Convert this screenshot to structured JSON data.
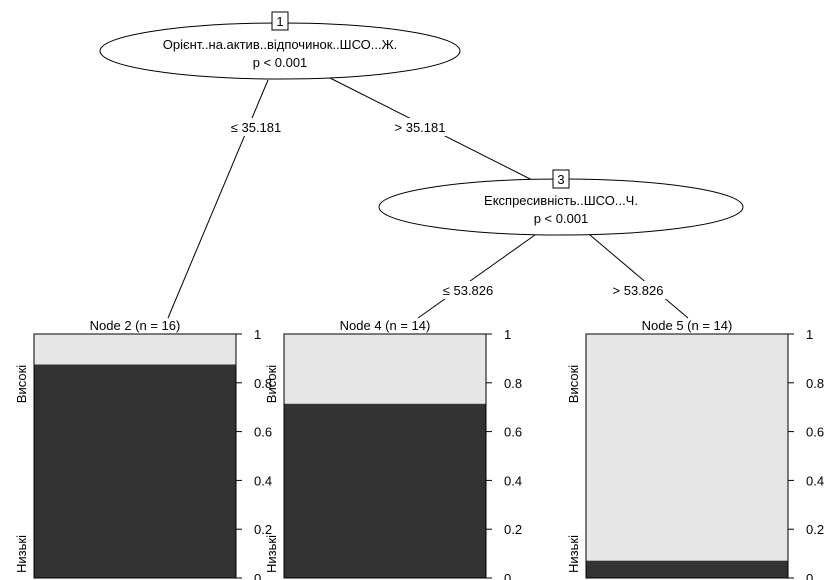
{
  "root": {
    "id": "1",
    "variable": "Орієнт..на.актив..відпочинок..ШСО...Ж.",
    "pvalue": "p < 0.001",
    "left_edge": "≤ 35.181",
    "right_edge": "> 35.181"
  },
  "inner": {
    "id": "3",
    "variable": "Експресивність..ШСО...Ч.",
    "pvalue": "p < 0.001",
    "left_edge": "≤ 53.826",
    "right_edge": "> 53.826"
  },
  "terminals": [
    {
      "title": "Node 2 (n = 16)",
      "share_visoki": 0.125
    },
    {
      "title": "Node 4 (n = 14)",
      "share_visoki": 0.286
    },
    {
      "title": "Node 5 (n = 14)",
      "share_visoki": 0.929
    }
  ],
  "class_labels": {
    "top": "Високі",
    "bottom": "Низькі"
  },
  "ticks": [
    "0",
    "0.2",
    "0.4",
    "0.6",
    "0.8",
    "1"
  ],
  "colors": {
    "visoki": "#e6e6e6",
    "nyzki": "#333333",
    "line": "#000000"
  }
}
